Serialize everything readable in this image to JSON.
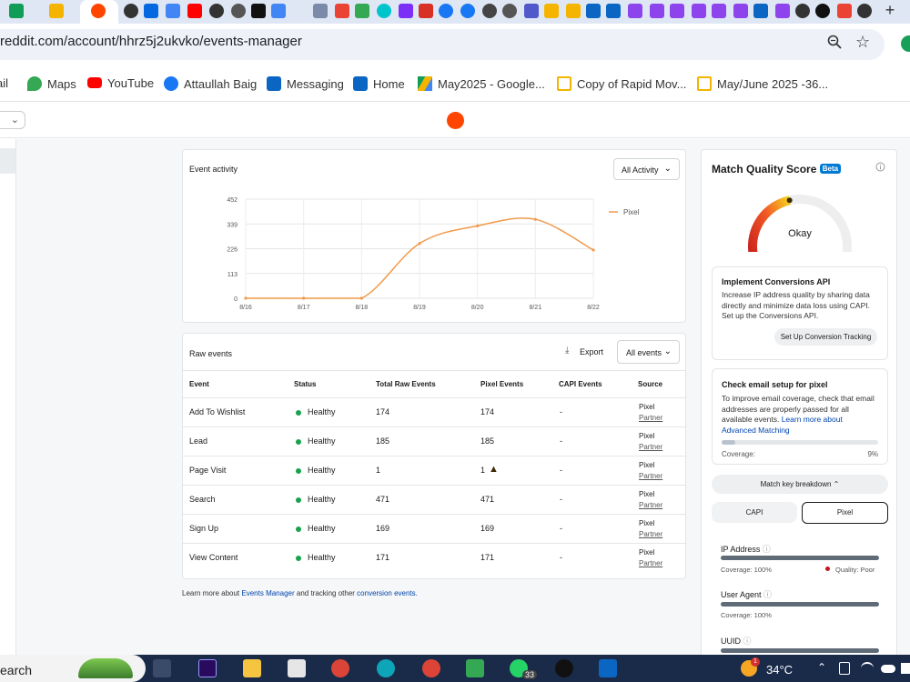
{
  "browser": {
    "url": "reddit.com/account/hhrz5j2ukvko/events-manager",
    "new_tab_symbol": "+",
    "bookmarks": [
      {
        "label": "ail",
        "icon": "gmail-icon"
      },
      {
        "label": "Maps",
        "icon": "maps-icon"
      },
      {
        "label": "YouTube",
        "icon": "youtube-icon"
      },
      {
        "label": "Attaullah Baig",
        "icon": "facebook-icon"
      },
      {
        "label": "Messaging",
        "icon": "linkedin-icon"
      },
      {
        "label": "Home",
        "icon": "linkedin-icon"
      },
      {
        "label": "May2025 - Google...",
        "icon": "drive-icon"
      },
      {
        "label": "Copy of Rapid Mov...",
        "icon": "slides-icon"
      },
      {
        "label": "May/June 2025 -36...",
        "icon": "slides-icon"
      }
    ]
  },
  "event_activity": {
    "title": "Event activity",
    "filter": "All Activity",
    "legend": "Pixel"
  },
  "chart_data": {
    "type": "line",
    "x": [
      "8/16",
      "8/17",
      "8/18",
      "8/19",
      "8/20",
      "8/21",
      "8/22"
    ],
    "series": [
      {
        "name": "Pixel",
        "values": [
          0,
          0,
          0,
          250,
          330,
          360,
          220
        ]
      }
    ],
    "yticks": [
      0,
      113,
      226,
      339,
      452
    ],
    "ylim": [
      0,
      452
    ],
    "grid": true,
    "legend_position": "top-right",
    "color": "#f2994a"
  },
  "raw_events": {
    "title": "Raw events",
    "export_label": "Export",
    "filter": "All events",
    "columns": [
      "Event",
      "Status",
      "Total Raw Events",
      "Pixel Events",
      "CAPI Events",
      "Source"
    ],
    "rows": [
      {
        "event": "Add To Wishlist",
        "status": "Healthy",
        "total": "174",
        "pixel": "174",
        "capi": "-",
        "source": "Pixel",
        "partner": "Partner"
      },
      {
        "event": "Lead",
        "status": "Healthy",
        "total": "185",
        "pixel": "185",
        "capi": "-",
        "source": "Pixel",
        "partner": "Partner"
      },
      {
        "event": "Page Visit",
        "status": "Healthy",
        "total": "1",
        "pixel": "1",
        "capi": "-",
        "source": "Pixel",
        "partner": "Partner",
        "warning": true
      },
      {
        "event": "Search",
        "status": "Healthy",
        "total": "471",
        "pixel": "471",
        "capi": "-",
        "source": "Pixel",
        "partner": "Partner"
      },
      {
        "event": "Sign Up",
        "status": "Healthy",
        "total": "169",
        "pixel": "169",
        "capi": "-",
        "source": "Pixel",
        "partner": "Partner"
      },
      {
        "event": "View Content",
        "status": "Healthy",
        "total": "171",
        "pixel": "171",
        "capi": "-",
        "source": "Pixel",
        "partner": "Partner"
      }
    ]
  },
  "footer": {
    "pre": "Learn more about",
    "link1": "Events Manager",
    "mid": "and tracking other",
    "link2": "conversion events."
  },
  "match_quality": {
    "title": "Match Quality Score",
    "badge": "Beta",
    "gauge_label": "Okay",
    "gauge_fraction": 0.45,
    "capi_card": {
      "title": "Implement Conversions API",
      "body": "Increase IP address quality by sharing data directly and minimize data loss using CAPI. Set up the Conversions API.",
      "button": "Set Up Conversion Tracking"
    },
    "email_card": {
      "title": "Check email setup for pixel",
      "body": "To improve email coverage, check that email addresses are properly passed for all available events.",
      "link": "Learn more about Advanced Matching",
      "coverage_label": "Coverage:",
      "coverage_value": "9%",
      "coverage_fraction": 0.09
    },
    "breakdown_button": "Match key breakdown",
    "tabs": [
      "CAPI",
      "Pixel"
    ],
    "active_tab": "Pixel",
    "keys": [
      {
        "name": "IP Address",
        "coverage": "Coverage: 100%",
        "quality": "Quality: Poor",
        "coverage_fraction": 1.0
      },
      {
        "name": "User Agent",
        "coverage": "Coverage: 100%",
        "coverage_fraction": 1.0
      },
      {
        "name": "UUID"
      }
    ]
  },
  "taskbar": {
    "search": "earch",
    "temperature": "34°C",
    "whatsapp_count": "33",
    "notification_count": "1"
  }
}
